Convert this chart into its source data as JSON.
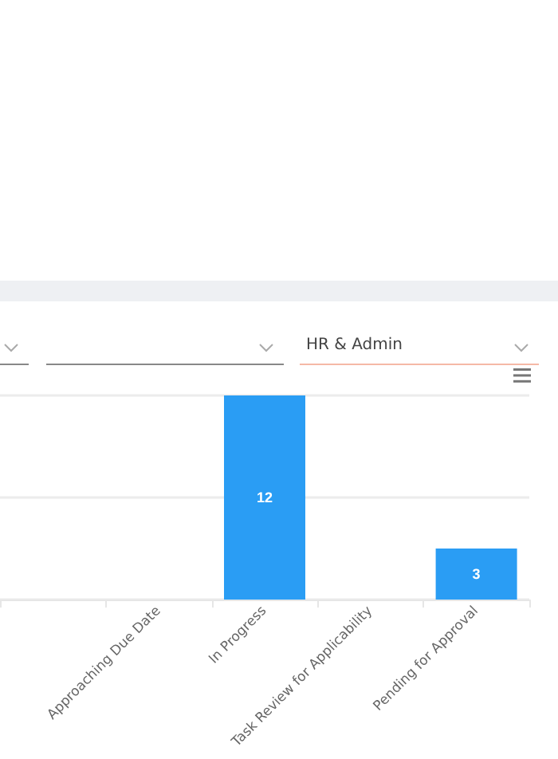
{
  "chart_data": {
    "type": "bar",
    "categories": [
      null,
      "Approaching Due Date",
      "In Progress",
      "Task Review for Applicability",
      "Pending for Approval"
    ],
    "values": [
      0,
      0,
      12,
      0,
      3
    ],
    "color": "#2a9df4",
    "ylim": [
      0,
      12
    ],
    "yticks": [
      {
        "value": 0,
        "label": null
      },
      {
        "value": 6,
        "label": null
      },
      {
        "value": 12,
        "label": null
      }
    ],
    "tick_labels": "x",
    "grid": "y",
    "value_labels": [
      null,
      null,
      "12",
      null,
      "3"
    ],
    "annotations": [
      "HR & Admin"
    ]
  }
}
